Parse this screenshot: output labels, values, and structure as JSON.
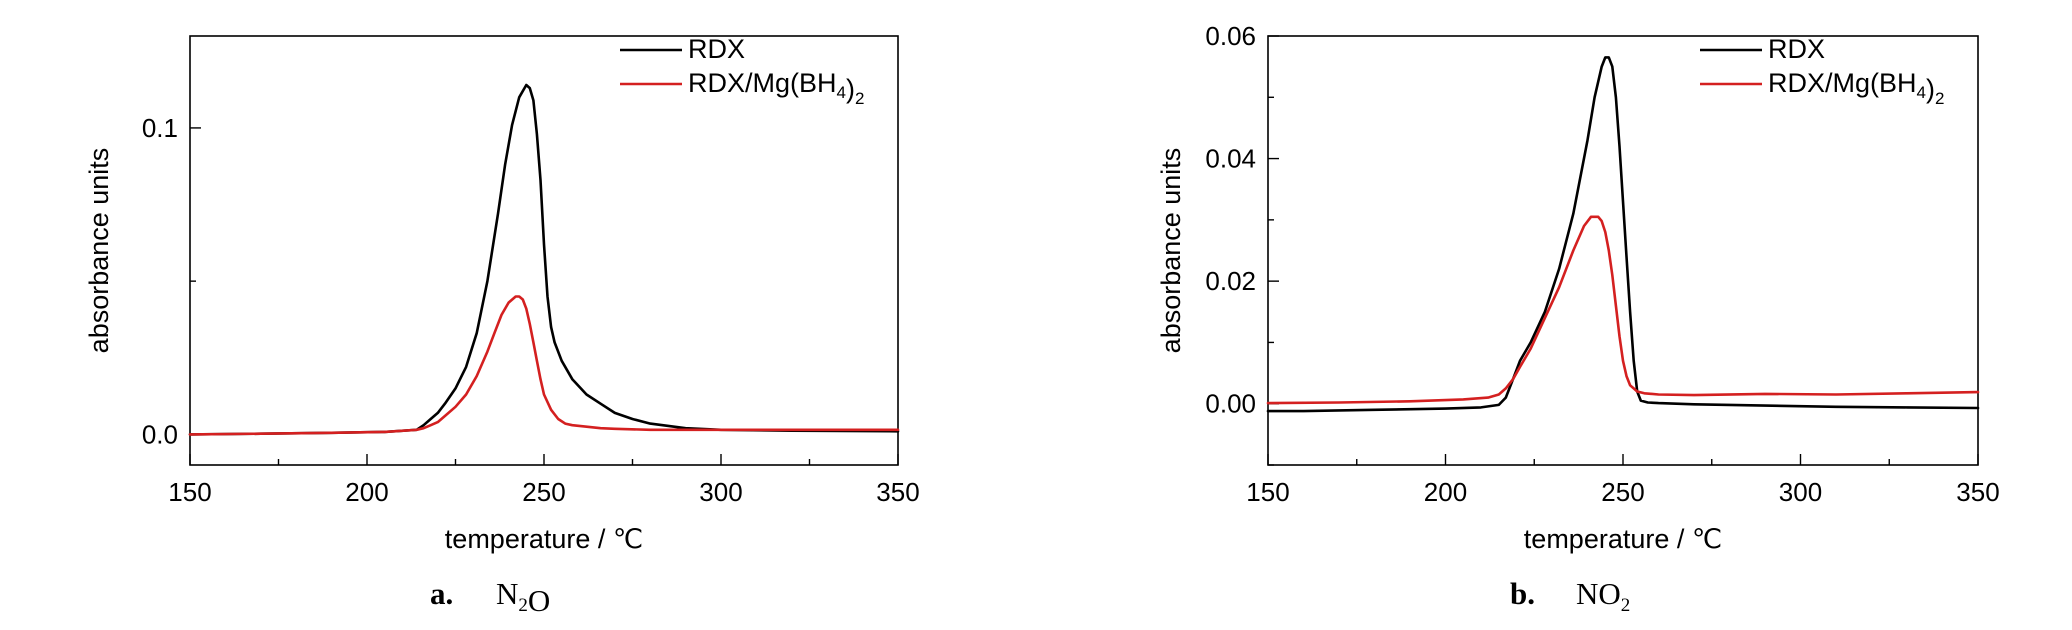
{
  "chart_data": [
    {
      "type": "line",
      "caption": {
        "letter": "a.",
        "formula": "N₂O"
      },
      "xlabel": "temperature / ℃",
      "ylabel": "absorbance units",
      "xlim": [
        150,
        350
      ],
      "ylim": [
        -0.01,
        0.13
      ],
      "xticks": [
        150,
        200,
        250,
        300,
        350
      ],
      "yticks": [
        0.0,
        0.1
      ],
      "ytick_labels": [
        "0.0",
        "0.1"
      ],
      "legend_position": "top-right",
      "series": [
        {
          "name": "RDX",
          "color": "#000000",
          "x": [
            150,
            170,
            190,
            205,
            214,
            216,
            218,
            220,
            222,
            225,
            228,
            231,
            234,
            237,
            239,
            241,
            243,
            245,
            246,
            247,
            248,
            249,
            250,
            251,
            252,
            253,
            255,
            258,
            262,
            266,
            270,
            275,
            280,
            290,
            300,
            320,
            350
          ],
          "y": [
            0.0,
            0.0002,
            0.0005,
            0.0008,
            0.0015,
            0.003,
            0.005,
            0.007,
            0.01,
            0.015,
            0.022,
            0.033,
            0.05,
            0.072,
            0.088,
            0.101,
            0.11,
            0.114,
            0.113,
            0.109,
            0.098,
            0.083,
            0.062,
            0.045,
            0.035,
            0.03,
            0.024,
            0.018,
            0.013,
            0.01,
            0.007,
            0.005,
            0.0035,
            0.002,
            0.0015,
            0.0012,
            0.001
          ]
        },
        {
          "name": "RDX/Mg(BH₄)₂",
          "color": "#d42020",
          "x": [
            150,
            170,
            190,
            205,
            214,
            216,
            218,
            220,
            222,
            225,
            228,
            231,
            234,
            236,
            238,
            240,
            242,
            243,
            244,
            245,
            246,
            247,
            248,
            249,
            250,
            252,
            254,
            256,
            258,
            262,
            266,
            270,
            280,
            300,
            320,
            350
          ],
          "y": [
            0.0,
            0.0002,
            0.0005,
            0.0008,
            0.0015,
            0.002,
            0.003,
            0.004,
            0.006,
            0.009,
            0.013,
            0.019,
            0.027,
            0.033,
            0.039,
            0.043,
            0.045,
            0.045,
            0.044,
            0.041,
            0.036,
            0.03,
            0.024,
            0.018,
            0.013,
            0.008,
            0.005,
            0.0035,
            0.003,
            0.0025,
            0.002,
            0.0018,
            0.0015,
            0.0015,
            0.0015,
            0.0015
          ]
        }
      ]
    },
    {
      "type": "line",
      "caption": {
        "letter": "b.",
        "formula": "NO₂"
      },
      "xlabel": "temperature / ℃",
      "ylabel": "absorbance units",
      "xlim": [
        150,
        350
      ],
      "ylim": [
        -0.01,
        0.06
      ],
      "xticks": [
        150,
        200,
        250,
        300,
        350
      ],
      "yticks": [
        0.0,
        0.02,
        0.04,
        0.06
      ],
      "ytick_labels": [
        "0.00",
        "0.02",
        "0.04",
        "0.06"
      ],
      "legend_position": "top-right",
      "series": [
        {
          "name": "RDX",
          "color": "#000000",
          "x": [
            150,
            160,
            180,
            200,
            210,
            215,
            217,
            219,
            221,
            224,
            228,
            232,
            236,
            240,
            242,
            244,
            245,
            246,
            247,
            248,
            249,
            250,
            251,
            252,
            253,
            254,
            255,
            257,
            260,
            270,
            290,
            310,
            330,
            350
          ],
          "y": [
            -0.0012,
            -0.0012,
            -0.001,
            -0.0008,
            -0.0006,
            -0.0002,
            0.001,
            0.004,
            0.007,
            0.01,
            0.015,
            0.022,
            0.031,
            0.043,
            0.05,
            0.055,
            0.0565,
            0.0565,
            0.055,
            0.05,
            0.042,
            0.033,
            0.024,
            0.015,
            0.007,
            0.002,
            0.0005,
            0.0002,
            0.0001,
            -0.0001,
            -0.0003,
            -0.0005,
            -0.0006,
            -0.0007
          ]
        },
        {
          "name": "RDX/Mg(BH₄)₂",
          "color": "#d42020",
          "x": [
            150,
            170,
            190,
            205,
            212,
            215,
            217,
            219,
            221,
            224,
            228,
            232,
            236,
            239,
            241,
            243,
            244,
            245,
            246,
            247,
            248,
            249,
            250,
            251,
            252,
            253,
            254,
            256,
            260,
            270,
            290,
            310,
            330,
            350
          ],
          "y": [
            0.0001,
            0.0002,
            0.0004,
            0.0007,
            0.001,
            0.0015,
            0.0025,
            0.004,
            0.006,
            0.009,
            0.014,
            0.019,
            0.025,
            0.029,
            0.0305,
            0.0305,
            0.0298,
            0.028,
            0.025,
            0.021,
            0.016,
            0.011,
            0.007,
            0.0045,
            0.003,
            0.0025,
            0.002,
            0.0017,
            0.0015,
            0.0014,
            0.0016,
            0.0015,
            0.0017,
            0.0019
          ]
        }
      ]
    }
  ]
}
